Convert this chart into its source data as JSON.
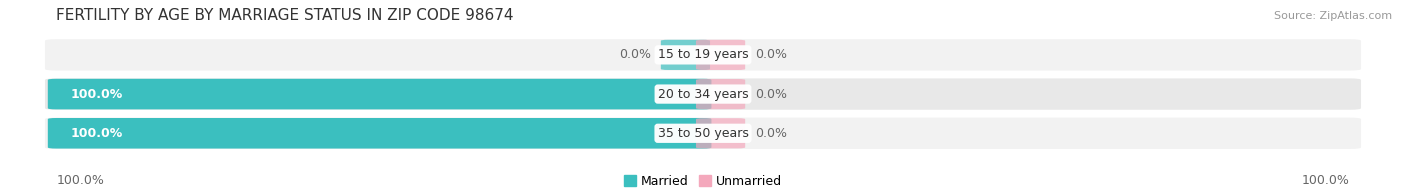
{
  "title": "FERTILITY BY AGE BY MARRIAGE STATUS IN ZIP CODE 98674",
  "source": "Source: ZipAtlas.com",
  "categories": [
    "15 to 19 years",
    "20 to 34 years",
    "35 to 50 years"
  ],
  "married_values": [
    0.0,
    100.0,
    100.0
  ],
  "unmarried_values": [
    0.0,
    0.0,
    0.0
  ],
  "married_color": "#3bbfbf",
  "unmarried_color": "#f4a8bc",
  "married_label_color_inside": "#ffffff",
  "married_label_color_outside": "#555555",
  "title_fontsize": 11,
  "source_fontsize": 8,
  "label_fontsize": 9,
  "category_fontsize": 9,
  "legend_fontsize": 9,
  "axis_label_left": "100.0%",
  "axis_label_right": "100.0%",
  "background_color": "#ffffff",
  "row_bg_light": "#f2f2f2",
  "row_bg_med": "#e8e8e8",
  "row_border_color": "#cccccc"
}
